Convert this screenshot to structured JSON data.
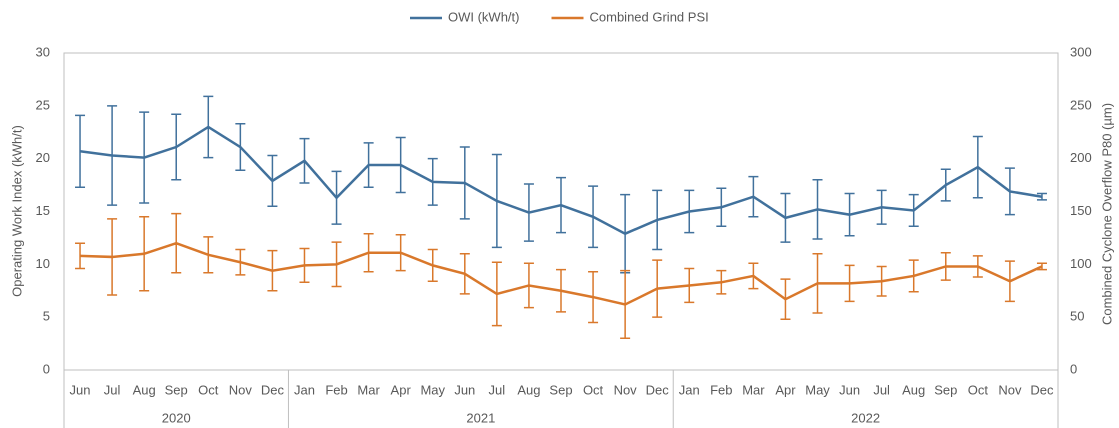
{
  "chart_data": {
    "type": "line",
    "categories": [
      "Jun",
      "Jul",
      "Aug",
      "Sep",
      "Oct",
      "Nov",
      "Dec",
      "Jan",
      "Feb",
      "Mar",
      "Apr",
      "May",
      "Jun",
      "Jul",
      "Aug",
      "Sep",
      "Oct",
      "Nov",
      "Dec",
      "Jan",
      "Feb",
      "Mar",
      "Apr",
      "May",
      "Jun",
      "Jul",
      "Aug",
      "Sep",
      "Oct",
      "Nov",
      "Dec"
    ],
    "groups": [
      {
        "label": "2020",
        "size": 7
      },
      {
        "label": "2021",
        "size": 12
      },
      {
        "label": "2022",
        "size": 12
      }
    ],
    "ylabel": "Operating Work Index (kWh/t)",
    "y2label": "Combined Cyclone Overflow P80 (µm)",
    "ylim": [
      0,
      30
    ],
    "yticks": [
      0,
      5,
      10,
      15,
      20,
      25,
      30
    ],
    "y2lim": [
      0,
      300
    ],
    "y2ticks": [
      0,
      50,
      100,
      150,
      200,
      250,
      300
    ],
    "legend": "top",
    "series": [
      {
        "name": "OWI (kWh/t)",
        "color": "#41719c",
        "axis": "y",
        "values": [
          20.7,
          20.3,
          20.1,
          21.1,
          23,
          21.1,
          17.9,
          19.8,
          16.3,
          19.4,
          19.4,
          17.8,
          17.7,
          16,
          14.9,
          15.6,
          14.5,
          12.9,
          14.2,
          15,
          15.4,
          16.4,
          14.4,
          15.2,
          14.7,
          15.4,
          15.1,
          17.5,
          19.2,
          16.9,
          16.4
        ],
        "errors": [
          3.4,
          4.7,
          4.3,
          3.1,
          2.9,
          2.2,
          2.4,
          2.1,
          2.5,
          2.1,
          2.6,
          2.2,
          3.4,
          4.4,
          2.7,
          2.6,
          2.9,
          3.7,
          2.8,
          2,
          1.8,
          1.9,
          2.3,
          2.8,
          2,
          1.6,
          1.5,
          1.5,
          2.9,
          2.2,
          0.3
        ]
      },
      {
        "name": "Combined Grind PSI",
        "color": "#d9782b",
        "axis": "y2",
        "values": [
          108,
          107,
          110,
          120,
          109,
          102,
          94,
          99,
          100,
          111,
          111,
          99,
          91,
          72,
          80,
          75,
          69,
          62,
          77,
          80,
          83,
          89,
          67,
          82,
          82,
          84,
          89,
          98,
          98,
          84,
          98
        ],
        "errors": [
          12,
          36,
          35,
          28,
          17,
          12,
          19,
          16,
          21,
          18,
          17,
          15,
          19,
          30,
          21,
          20,
          24,
          32,
          27,
          16,
          11,
          12,
          19,
          28,
          17,
          14,
          15,
          13,
          10,
          19,
          3
        ]
      }
    ]
  }
}
